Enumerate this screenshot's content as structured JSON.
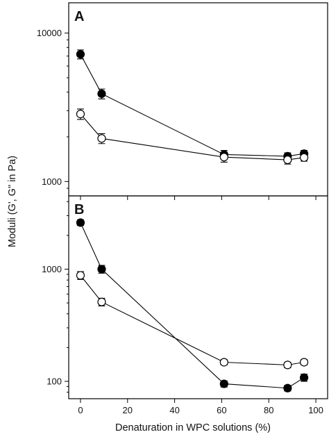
{
  "chart_data": [
    {
      "panel": "A",
      "type": "line",
      "yscale": "log",
      "ylim": [
        800,
        16000
      ],
      "xlim": [
        -5,
        105
      ],
      "x_ticks": [
        0,
        20,
        40,
        60,
        80,
        100
      ],
      "y_ticks": [
        1000,
        10000
      ],
      "y_tick_labels": [
        "1000",
        "10000"
      ],
      "series": [
        {
          "marker": "filled-circle",
          "color": "#000000",
          "x": [
            0,
            9,
            61,
            88,
            95
          ],
          "y": [
            7200,
            3900,
            1520,
            1480,
            1540
          ],
          "err": [
            500,
            300,
            100,
            80,
            80
          ]
        },
        {
          "marker": "open-circle",
          "color": "#000000",
          "x": [
            0,
            9,
            61,
            88,
            95
          ],
          "y": [
            2850,
            1950,
            1460,
            1400,
            1450
          ],
          "err": [
            230,
            150,
            110,
            90,
            80
          ]
        }
      ]
    },
    {
      "panel": "B",
      "type": "line",
      "yscale": "log",
      "ylim": [
        70,
        4500
      ],
      "xlim": [
        -5,
        105
      ],
      "x_ticks": [
        0,
        20,
        40,
        60,
        80,
        100
      ],
      "x_tick_labels": [
        "0",
        "20",
        "40",
        "60",
        "80",
        "100"
      ],
      "y_ticks": [
        100,
        1000
      ],
      "y_tick_labels": [
        "100",
        "1000"
      ],
      "series": [
        {
          "marker": "filled-circle",
          "color": "#000000",
          "x": [
            0,
            9,
            61,
            88,
            95
          ],
          "y": [
            2600,
            1000,
            95,
            87,
            108
          ],
          "err": [
            150,
            80,
            6,
            5,
            8
          ]
        },
        {
          "marker": "open-circle",
          "color": "#000000",
          "x": [
            0,
            9,
            61,
            88,
            95
          ],
          "y": [
            880,
            510,
            148,
            140,
            148
          ],
          "err": [
            70,
            40,
            8,
            8,
            8
          ]
        }
      ]
    }
  ],
  "labels": {
    "panel_a": "A",
    "panel_b": "B",
    "xlabel": "Denaturation in WPC solutions (%)",
    "ylabel": "Moduli (G', G\" in Pa)"
  }
}
